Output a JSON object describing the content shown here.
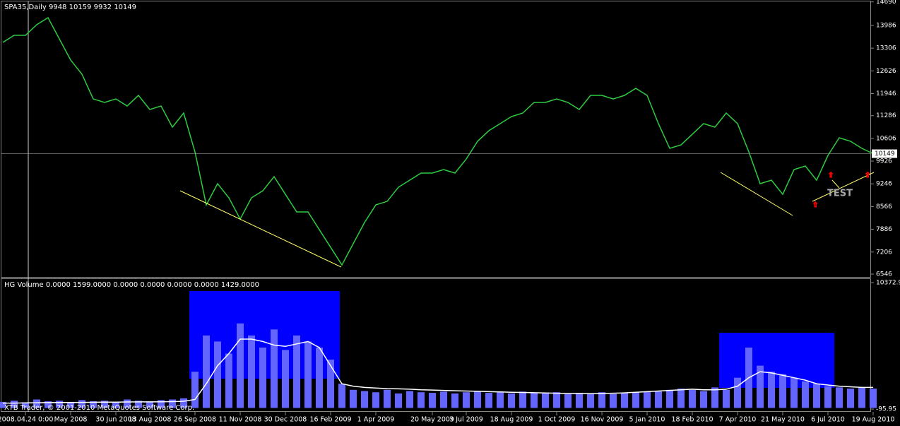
{
  "chart_data": [
    {
      "type": "line",
      "title": "SPA35,Daily  9948 10159 9932 10149",
      "annotation": "TEST",
      "last_price": 10149,
      "categories": [
        null,
        null,
        "2008.04.24 0:00",
        null,
        null,
        null,
        "May 2008",
        null,
        null,
        null,
        "30 Jun 2008",
        null,
        null,
        "13 Aug 2008",
        null,
        null,
        null,
        "26 Sep 2008",
        null,
        null,
        null,
        "11 Nov 2008",
        null,
        null,
        null,
        "30 Dec 2008",
        null,
        null,
        null,
        "16 Feb 2009",
        null,
        null,
        null,
        "1 Apr 2009",
        null,
        null,
        null,
        null,
        "20 May 2009",
        null,
        null,
        "3 Jul 2009",
        null,
        null,
        null,
        "18 Aug 2009",
        null,
        null,
        null,
        "1 Oct 2009",
        null,
        null,
        null,
        "16 Nov 2009",
        null,
        null,
        null,
        "5 Jan 2010",
        null,
        null,
        null,
        "18 Feb 2010",
        null,
        null,
        null,
        "7 Apr 2010",
        null,
        null,
        null,
        "21 May 2010",
        null,
        null,
        null,
        "6 Jul 2010",
        null,
        null,
        null,
        "19 Aug 2010"
      ],
      "series": [
        {
          "name": "SPA35",
          "color": "#2ecc40",
          "values": [
            13479,
            13690,
            13690,
            14007,
            14218,
            13584,
            12950,
            12527,
            11787,
            11682,
            11787,
            11576,
            11893,
            11470,
            11576,
            10942,
            11365,
            10202,
            8616,
            9251,
            8828,
            8193,
            8828,
            9039,
            9462,
            8933,
            8405,
            8405,
            7876,
            7348,
            6819,
            7454,
            8088,
            8616,
            8722,
            9145,
            9356,
            9568,
            9568,
            9673,
            9568,
            9990,
            10519,
            10836,
            11048,
            11259,
            11365,
            11682,
            11682,
            11787,
            11682,
            11470,
            11893,
            11893,
            11787,
            11893,
            12104,
            11893,
            11048,
            10308,
            10413,
            10730,
            11048,
            10942,
            11365,
            11048,
            10202,
            9251,
            9356,
            8933,
            9673,
            9779,
            9356,
            10096,
            10625,
            10519,
            10308,
            10149
          ]
        }
      ],
      "ylim": [
        6461,
        14747
      ],
      "yticks": [
        6546,
        7206,
        7886,
        8566,
        9246,
        9926,
        10606,
        11286,
        11946,
        12626,
        13306,
        13986,
        14690
      ]
    },
    {
      "type": "bar",
      "title": "HG Volume 0.0000 1599.0000 0.0000 0.0000 0.0000 0.0000 1429.0000",
      "footer": "XTB Trader, © 2001-2010 MetaQuotes Software Corp.",
      "series": [
        {
          "name": "Volume",
          "color": "#6464ff",
          "values": [
            500,
            600,
            450,
            700,
            550,
            600,
            500,
            650,
            550,
            600,
            500,
            700,
            600,
            550,
            650,
            700,
            800,
            3000,
            6000,
            5500,
            4500,
            7000,
            6000,
            5000,
            6500,
            4800,
            6000,
            5500,
            5000,
            4000,
            2000,
            1500,
            1400,
            1300,
            1500,
            1200,
            1400,
            1300,
            1250,
            1350,
            1200,
            1300,
            1400,
            1250,
            1300,
            1200,
            1350,
            1250,
            1200,
            1300,
            1150,
            1250,
            1200,
            1300,
            1150,
            1250,
            1300,
            1350,
            1400,
            1500,
            1600,
            1500,
            1400,
            1700,
            1500,
            2500,
            5000,
            3500,
            3000,
            2800,
            2500,
            2200,
            2000,
            1800,
            1700,
            1600,
            1700,
            1600
          ]
        },
        {
          "name": "MA",
          "color": "#ffffff",
          "values": [
            400,
            400,
            420,
            430,
            440,
            450,
            450,
            460,
            470,
            480,
            480,
            490,
            500,
            500,
            510,
            520,
            550,
            700,
            2000,
            3500,
            4500,
            5700,
            5700,
            5500,
            5200,
            5100,
            5300,
            5500,
            5000,
            3500,
            2000,
            1800,
            1700,
            1650,
            1600,
            1580,
            1550,
            1500,
            1480,
            1450,
            1420,
            1400,
            1380,
            1350,
            1330,
            1300,
            1280,
            1260,
            1240,
            1220,
            1200,
            1200,
            1180,
            1200,
            1220,
            1250,
            1300,
            1350,
            1400,
            1450,
            1500,
            1550,
            1500,
            1500,
            1550,
            1800,
            2500,
            3000,
            2900,
            2700,
            2500,
            2300,
            2000,
            1900,
            1800,
            1750,
            1700,
            1700
          ]
        }
      ],
      "ylim": [
        -150,
        10670
      ],
      "yticks": [
        -95.95,
        10372.9
      ]
    }
  ]
}
